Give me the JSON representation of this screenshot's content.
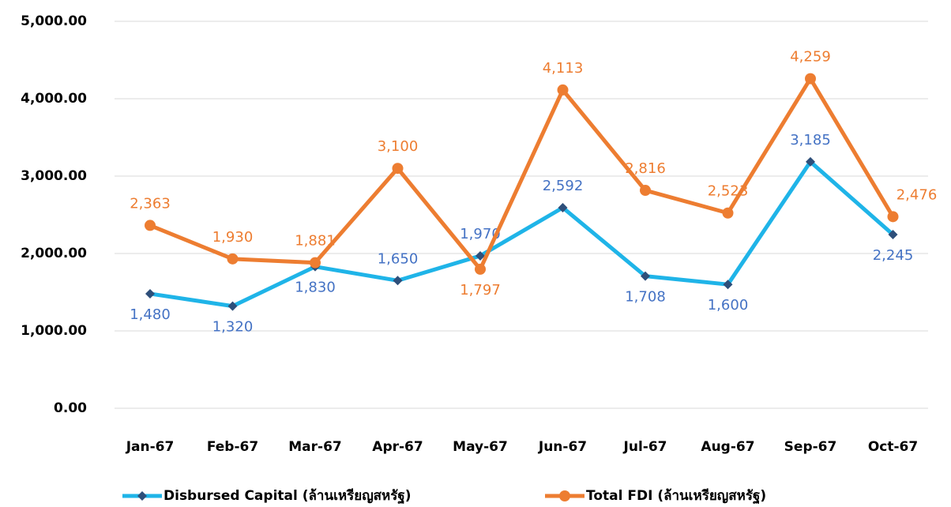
{
  "chart_data": {
    "type": "line",
    "categories": [
      "Jan-67",
      "Feb-67",
      "Mar-67",
      "Apr-67",
      "May-67",
      "Jun-67",
      "Jul-67",
      "Aug-67",
      "Sep-67",
      "Oct-67"
    ],
    "series": [
      {
        "name": "Disbursed Capital (ล้านเหรียญสหรัฐ)",
        "color": "#1fb4e8",
        "marker_color": "#2e4f7a",
        "label_color": "#4472c4",
        "values": [
          1480,
          1320,
          1830,
          1650,
          1970,
          2592,
          1708,
          1600,
          3185,
          2245
        ],
        "value_labels": [
          "1,480",
          "1,320",
          "1,830",
          "1,650",
          "1,970",
          "2,592",
          "1,708",
          "1,600",
          "3,185",
          "2,245"
        ]
      },
      {
        "name": "Total FDI (ล้านเหรียญสหรัฐ)",
        "color": "#ed7d31",
        "marker_color": "#ed7d31",
        "label_color": "#ed7d31",
        "values": [
          2363,
          1930,
          1881,
          3100,
          1797,
          4113,
          2816,
          2523,
          4259,
          2476
        ],
        "value_labels": [
          "2,363",
          "1,930",
          "1,881",
          "3,100",
          "1,797",
          "4,113",
          "2,816",
          "2,523",
          "4,259",
          "2,476"
        ]
      }
    ],
    "ylim": [
      0,
      5000
    ],
    "yticks": [
      {
        "value": 0,
        "label": "0.00"
      },
      {
        "value": 1000,
        "label": "1,000.00"
      },
      {
        "value": 2000,
        "label": "2,000.00"
      },
      {
        "value": 3000,
        "label": "3,000.00"
      },
      {
        "value": 4000,
        "label": "4,000.00"
      },
      {
        "value": 5000,
        "label": "5,000.00"
      }
    ],
    "grid": true,
    "legend": "bottom"
  }
}
